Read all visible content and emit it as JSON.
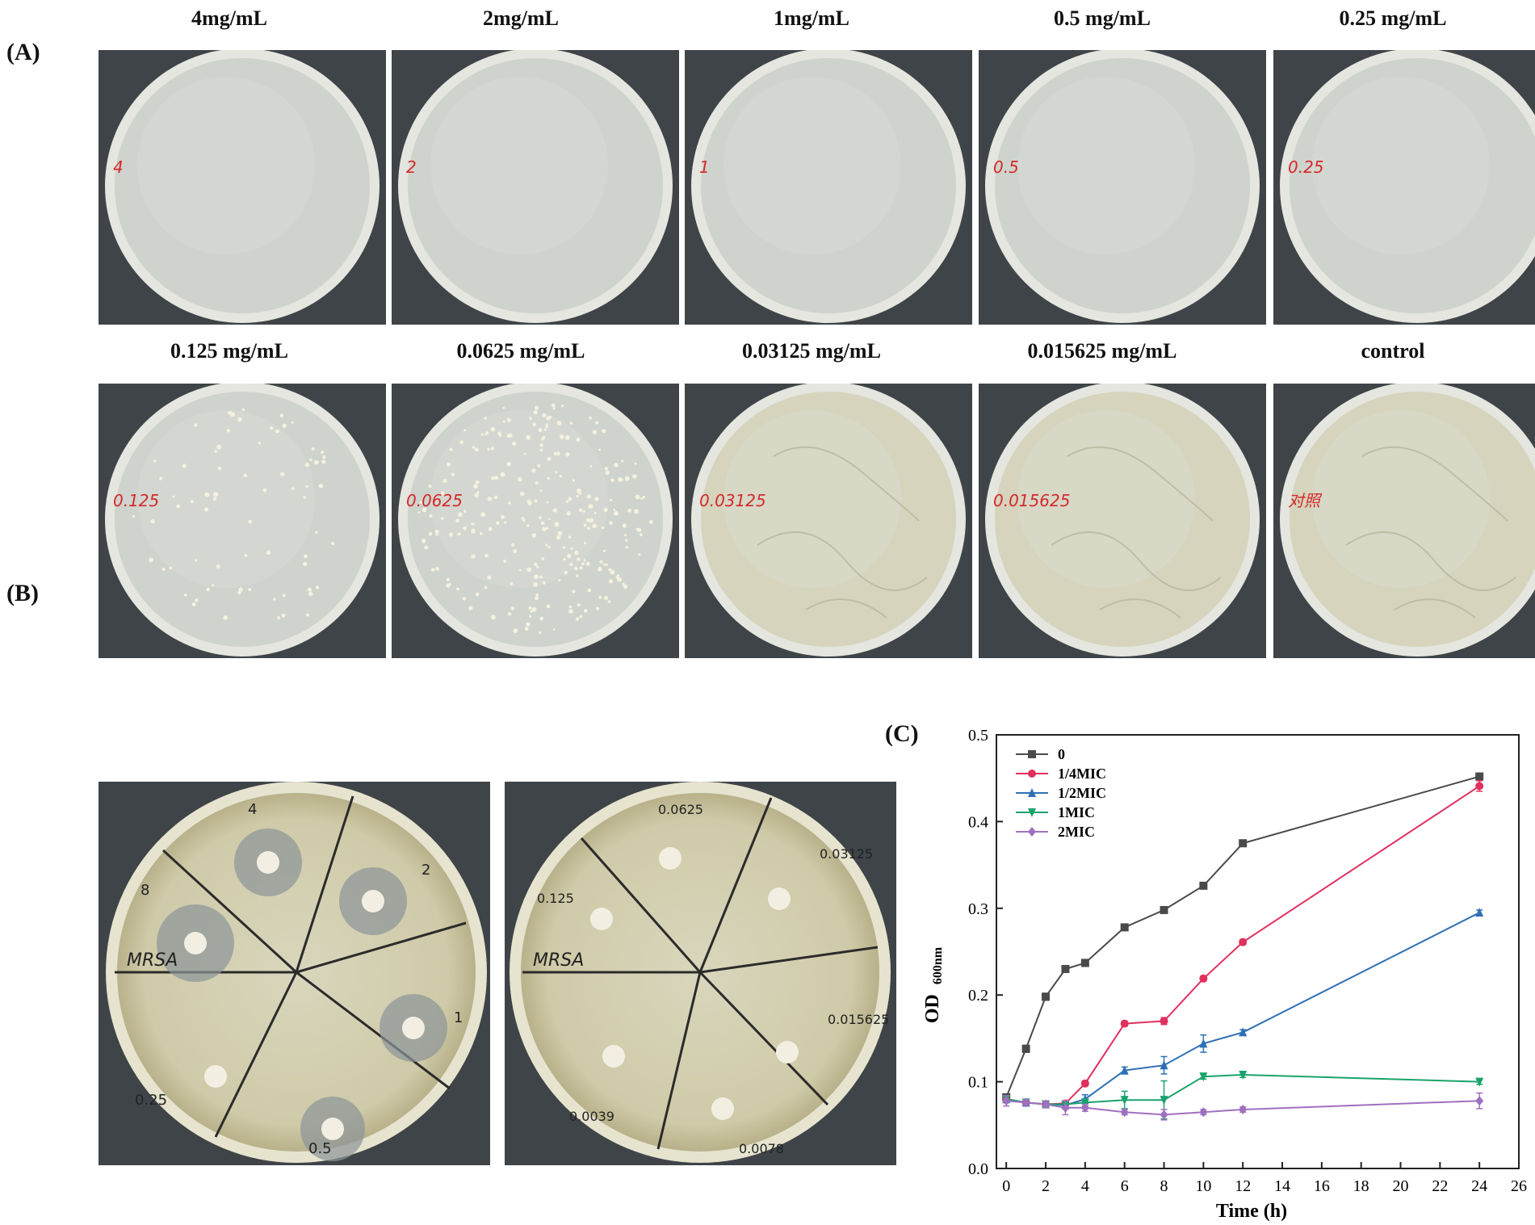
{
  "panel_a": {
    "letter": "(A)",
    "plates": [
      {
        "label": "4mg/mL",
        "marker": "4",
        "colonies": 0,
        "film": false
      },
      {
        "label": "2mg/mL",
        "marker": "2",
        "colonies": 0,
        "film": false
      },
      {
        "label": "1mg/mL",
        "marker": "1",
        "colonies": 0,
        "film": false
      },
      {
        "label": "0.5 mg/mL",
        "marker": "0.5",
        "colonies": 0,
        "film": false
      },
      {
        "label": "0.25 mg/mL",
        "marker": "0.25",
        "colonies": 0,
        "film": false
      },
      {
        "label": "0.125 mg/mL",
        "marker": "0.125",
        "colonies": 70,
        "film": false
      },
      {
        "label": "0.0625 mg/mL",
        "marker": "0.0625",
        "colonies": 260,
        "film": false
      },
      {
        "label": "0.03125 mg/mL",
        "marker": "0.03125",
        "colonies": 0,
        "film": true
      },
      {
        "label": "0.015625 mg/mL",
        "marker": "0.015625",
        "colonies": 0,
        "film": true
      },
      {
        "label": "control",
        "marker": "对照",
        "colonies": 0,
        "film": true
      }
    ]
  },
  "panel_b": {
    "letter": "(B)",
    "dish1": {
      "organism": "MRSA",
      "sector_labels": [
        "4",
        "2",
        "1",
        "0.5",
        "0.25",
        "8"
      ]
    },
    "dish2": {
      "organism": "MRSA",
      "sector_labels": [
        "0.0625",
        "0.03125",
        "0.015625",
        "0.0078",
        "0.0039",
        "0.125"
      ]
    }
  },
  "panel_c": {
    "letter": "(C)",
    "chart_data": {
      "type": "line",
      "xlabel": "Time (h)",
      "ylabel": "OD",
      "ylabel_sub": "600nm",
      "xlim": [
        -0.5,
        26
      ],
      "ylim": [
        0,
        0.5
      ],
      "xticks": [
        0,
        2,
        4,
        6,
        8,
        10,
        12,
        14,
        16,
        18,
        20,
        22,
        24,
        26
      ],
      "yticks": [
        0.0,
        0.1,
        0.2,
        0.3,
        0.4,
        0.5
      ],
      "x": [
        0,
        1,
        2,
        3,
        4,
        6,
        8,
        10,
        12,
        24
      ],
      "legend_position": "top-left",
      "series": [
        {
          "name": "0",
          "color": "#4a4a4a",
          "marker": "square",
          "values": [
            0.082,
            0.138,
            0.198,
            0.23,
            0.237,
            0.278,
            0.298,
            0.326,
            0.375,
            0.452
          ],
          "errors": [
            0.004,
            0.004,
            0.004,
            0.003,
            0.004,
            0.003,
            0.003,
            0.003,
            0.003,
            0.003
          ]
        },
        {
          "name": "1/4MIC",
          "color": "#e0305e",
          "marker": "circle",
          "values": [
            0.08,
            0.076,
            0.074,
            0.075,
            0.098,
            0.167,
            0.17,
            0.219,
            0.261,
            0.441
          ],
          "errors": [
            0.004,
            0.003,
            0.003,
            0.003,
            0.003,
            0.003,
            0.004,
            0.003,
            0.003,
            0.006
          ]
        },
        {
          "name": "1/2MIC",
          "color": "#2e6fb5",
          "marker": "triangle-up",
          "values": [
            0.08,
            0.076,
            0.074,
            0.073,
            0.08,
            0.113,
            0.119,
            0.144,
            0.157,
            0.295
          ],
          "errors": [
            0.004,
            0.003,
            0.003,
            0.003,
            0.005,
            0.004,
            0.01,
            0.01,
            0.003,
            0.003
          ]
        },
        {
          "name": "1MIC",
          "color": "#1aa36c",
          "marker": "triangle-down",
          "values": [
            0.08,
            0.076,
            0.074,
            0.074,
            0.076,
            0.079,
            0.079,
            0.106,
            0.108,
            0.1
          ],
          "errors": [
            0.004,
            0.003,
            0.003,
            0.003,
            0.004,
            0.01,
            0.022,
            0.003,
            0.003,
            0.003
          ]
        },
        {
          "name": "2MIC",
          "color": "#a070c0",
          "marker": "diamond",
          "values": [
            0.078,
            0.076,
            0.074,
            0.07,
            0.07,
            0.065,
            0.062,
            0.065,
            0.068,
            0.078
          ],
          "errors": [
            0.006,
            0.003,
            0.004,
            0.008,
            0.004,
            0.003,
            0.006,
            0.003,
            0.003,
            0.009
          ]
        }
      ]
    }
  }
}
